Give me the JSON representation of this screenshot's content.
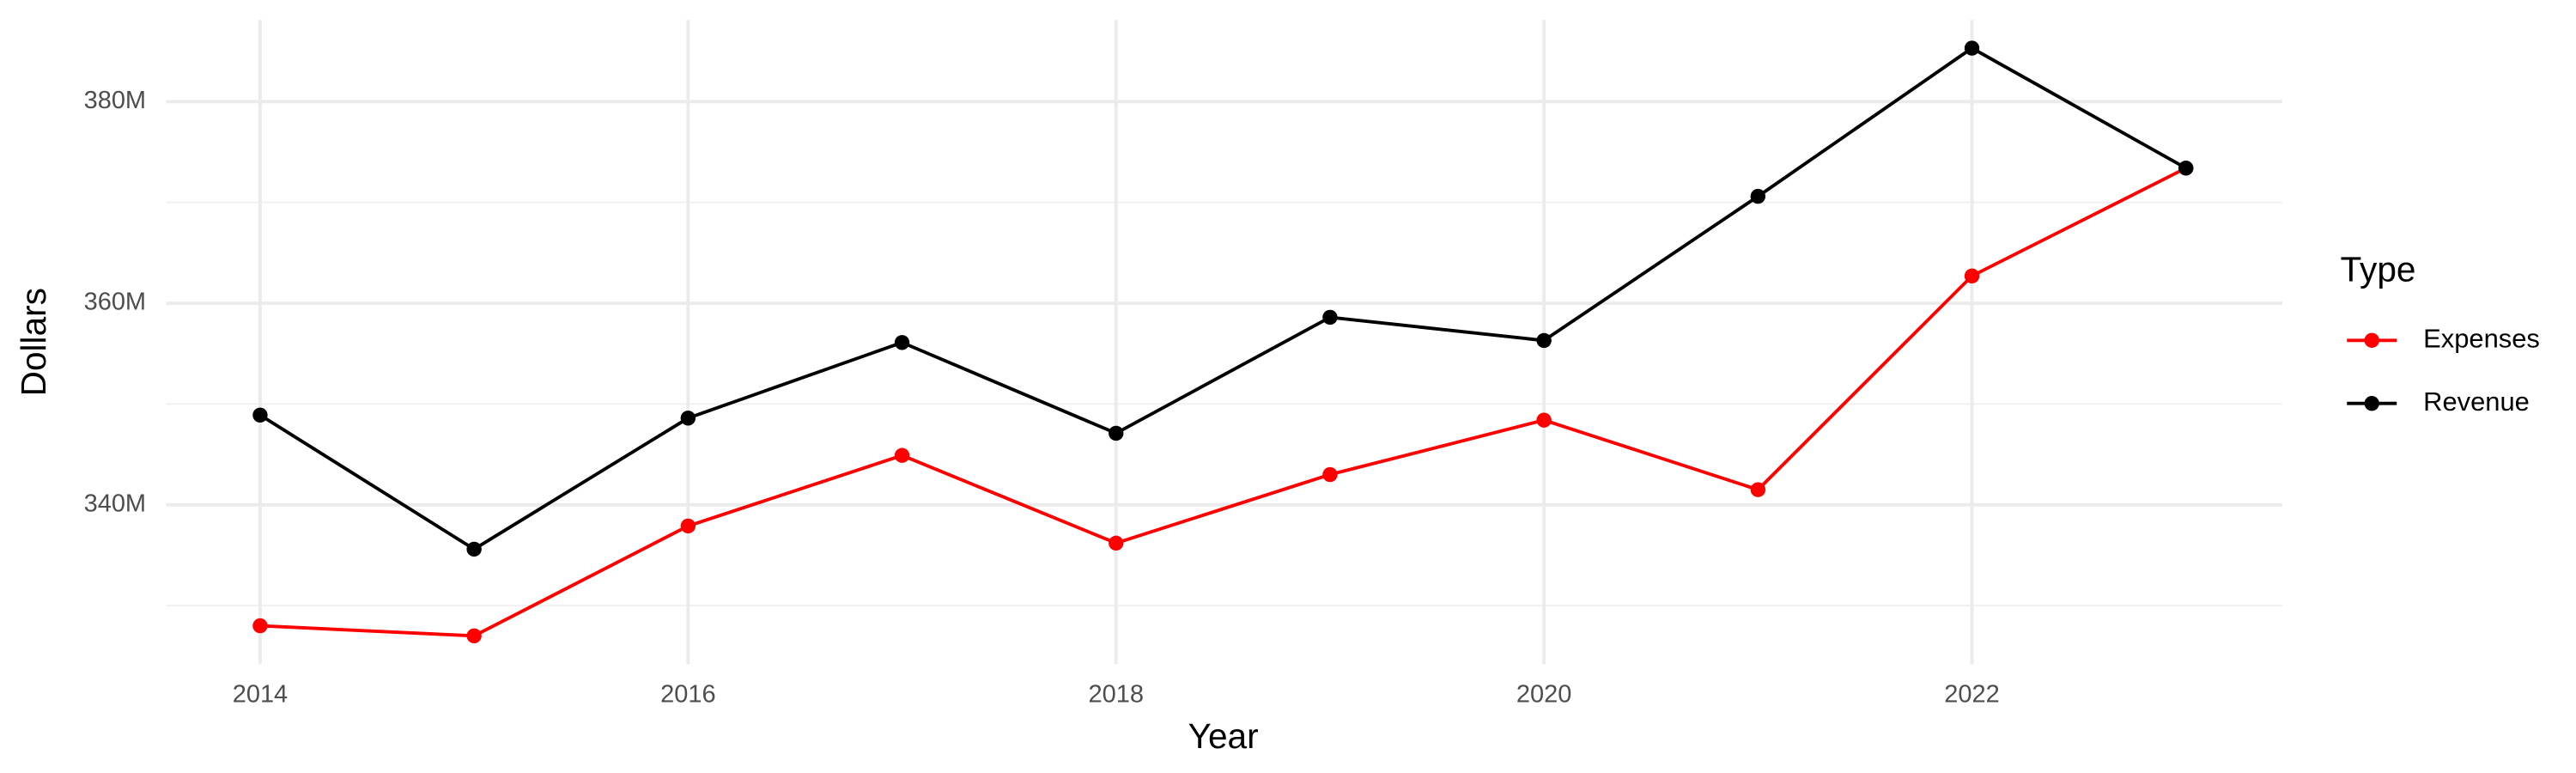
{
  "chart_data": {
    "type": "line",
    "x_label": "Year",
    "y_label": "Dollars",
    "legend_title": "Type",
    "legend": "right",
    "grid": true,
    "x": [
      2014,
      2015,
      2016,
      2017,
      2018,
      2019,
      2020,
      2021,
      2022,
      2023
    ],
    "series": [
      {
        "name": "Expenses",
        "color": "#ff0000",
        "values": [
          328000000,
          327000000,
          337900000,
          344900000,
          336200000,
          343000000,
          348400000,
          341500000,
          362700000,
          373400000
        ]
      },
      {
        "name": "Revenue",
        "color": "#000000",
        "values": [
          348900000,
          335600000,
          348600000,
          356100000,
          347100000,
          358600000,
          356300000,
          370600000,
          385300000,
          373400000
        ]
      }
    ],
    "xlim": [
      2013.56,
      2023.45
    ],
    "xticks": [
      2014,
      2016,
      2018,
      2020,
      2022
    ],
    "ylim": [
      324200000,
      388100000
    ],
    "yticks": [
      {
        "value": 340000000,
        "label": "340M"
      },
      {
        "value": 360000000,
        "label": "360M"
      },
      {
        "value": 380000000,
        "label": "380M"
      }
    ]
  }
}
